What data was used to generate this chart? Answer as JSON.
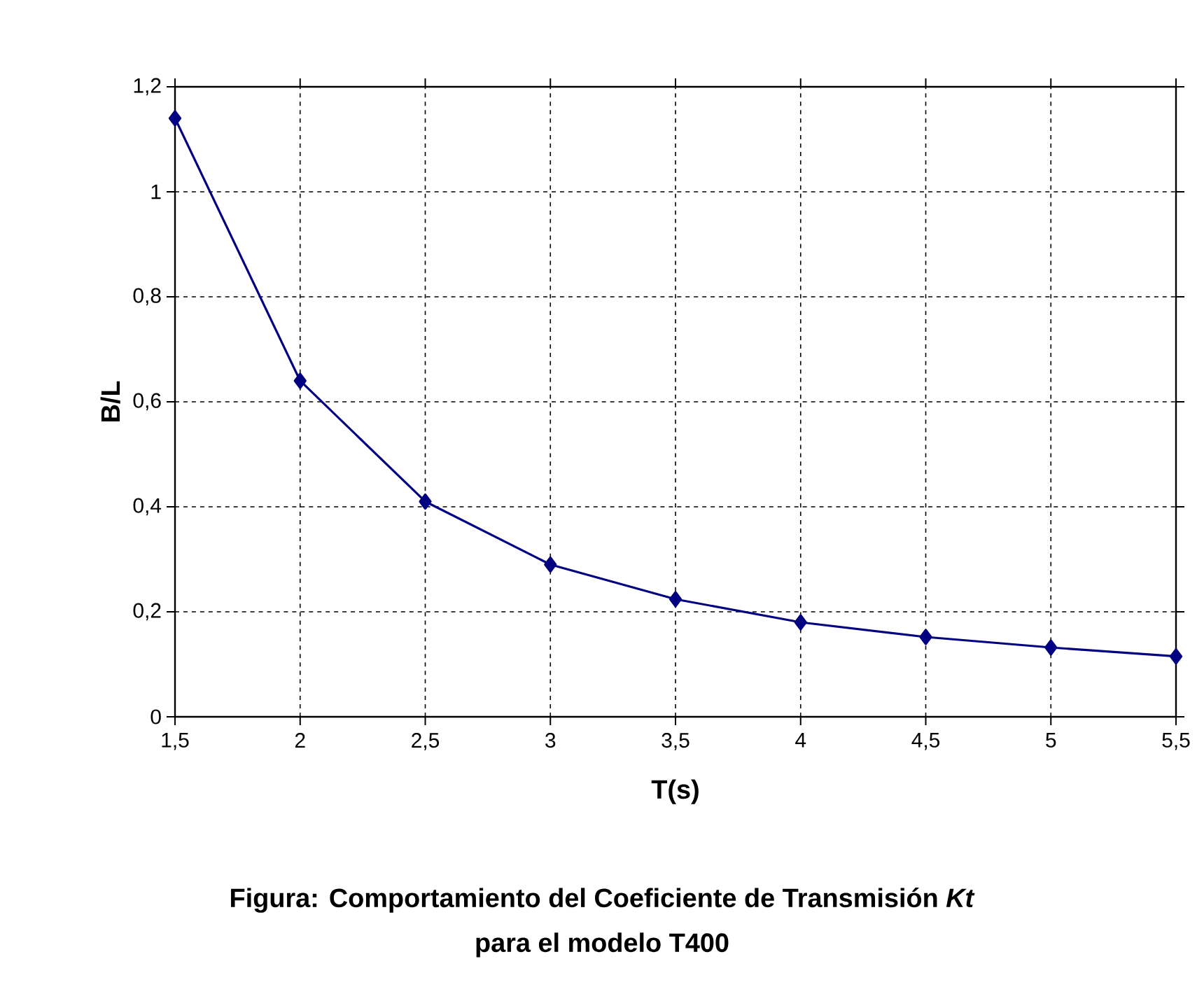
{
  "chart_data": {
    "type": "line",
    "xlabel": "T(s)",
    "ylabel": "B/L",
    "annotations": [
      "Figura: Comportamiento del Coeficiente de Transmisión *Kt*",
      "para el modelo T400"
    ],
    "x": [
      1.5,
      2,
      2.5,
      3,
      3.5,
      4,
      4.5,
      5,
      5.5
    ],
    "series": [
      {
        "color": "#000080",
        "values": [
          1.14,
          0.64,
          0.41,
          0.29,
          0.224,
          0.18,
          0.152,
          0.132,
          0.115
        ]
      }
    ],
    "xlim": [
      1.5,
      5.5
    ],
    "xticks": [
      {
        "value": 1.5,
        "label": "1,5"
      },
      2,
      {
        "value": 2.5,
        "label": "2,5"
      },
      3,
      {
        "value": 3.5,
        "label": "3,5"
      },
      4,
      {
        "value": 4.5,
        "label": "4,5"
      },
      5,
      {
        "value": 5.5,
        "label": "5,5"
      }
    ],
    "ylim": [
      0,
      1.2
    ],
    "yticks": [
      0,
      {
        "value": 0.2,
        "label": "0,2"
      },
      {
        "value": 0.4,
        "label": "0,4"
      },
      {
        "value": 0.6,
        "label": "0,6"
      },
      {
        "value": 0.8,
        "label": "0,8"
      },
      1,
      {
        "value": 1.2,
        "label": "1,2"
      }
    ],
    "grid": true,
    "marker": "diamond",
    "line_style": "solid"
  }
}
